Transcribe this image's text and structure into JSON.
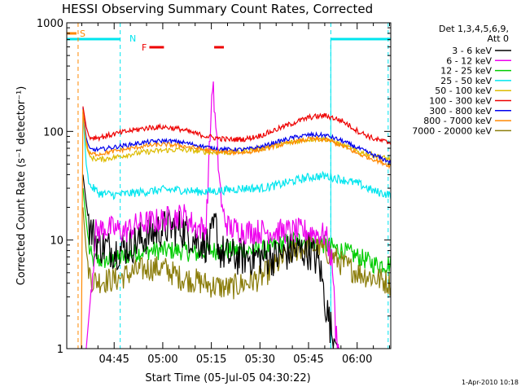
{
  "chart_data": {
    "type": "line",
    "title": "HESSI Observing Summary Count Rates, Corrected",
    "xlabel": "Start Time (05-Jul-05 04:30:22)",
    "ylabel": "Corrected Count Rate (s⁻¹ detector⁻¹)",
    "yscale": "log",
    "ylim": [
      1,
      1000
    ],
    "xlim_minutes": [
      0,
      100
    ],
    "x_ticks": [
      {
        "label": "04:45",
        "minute": 14.63
      },
      {
        "label": "05:00",
        "minute": 29.63
      },
      {
        "label": "05:15",
        "minute": 44.63
      },
      {
        "label": "05:30",
        "minute": 59.63
      },
      {
        "label": "05:45",
        "minute": 74.63
      },
      {
        "label": "06:00",
        "minute": 89.63
      }
    ],
    "y_ticks": [
      {
        "label": "1",
        "value": 1
      },
      {
        "label": "10",
        "value": 10
      },
      {
        "label": "100",
        "value": 100
      },
      {
        "label": "1000",
        "value": 1000
      }
    ],
    "legend_header": [
      "Det 1,3,4,5,6,9,",
      "Att 0"
    ],
    "legend_position": "right",
    "series": [
      {
        "name": "3 - 6 keV",
        "color": "#000000",
        "points": [
          [
            5,
            40
          ],
          [
            6,
            22
          ],
          [
            7,
            13
          ],
          [
            10,
            9
          ],
          [
            15,
            8
          ],
          [
            20,
            9
          ],
          [
            25,
            11
          ],
          [
            30,
            13
          ],
          [
            35,
            13
          ],
          [
            40,
            10
          ],
          [
            44,
            9
          ],
          [
            46,
            14
          ],
          [
            47,
            8
          ],
          [
            50,
            7
          ],
          [
            55,
            7
          ],
          [
            60,
            7
          ],
          [
            65,
            7
          ],
          [
            70,
            8
          ],
          [
            75,
            8
          ],
          [
            78,
            6
          ],
          [
            80,
            2.5
          ],
          [
            82,
            1.3
          ],
          [
            84,
            1
          ]
        ]
      },
      {
        "name": "6 - 12 keV",
        "color": "#ee00ee",
        "points": [
          [
            6,
            1
          ],
          [
            6.5,
            1.5
          ],
          [
            9,
            12
          ],
          [
            12,
            13
          ],
          [
            18,
            12
          ],
          [
            22,
            14
          ],
          [
            28,
            15
          ],
          [
            32,
            16
          ],
          [
            36,
            17
          ],
          [
            40,
            13
          ],
          [
            43,
            13
          ],
          [
            45,
            300
          ],
          [
            46,
            100
          ],
          [
            48,
            18
          ],
          [
            50,
            13
          ],
          [
            55,
            12
          ],
          [
            60,
            12
          ],
          [
            65,
            12
          ],
          [
            70,
            12
          ],
          [
            75,
            12
          ],
          [
            80,
            11
          ],
          [
            82,
            6
          ],
          [
            83,
            1.5
          ],
          [
            84,
            1
          ]
        ]
      },
      {
        "name": "12 - 25 keV",
        "color": "#00cc00",
        "points": [
          [
            5,
            30
          ],
          [
            6,
            15
          ],
          [
            7,
            8
          ],
          [
            8,
            6.5
          ],
          [
            15,
            6.5
          ],
          [
            20,
            7.5
          ],
          [
            25,
            8
          ],
          [
            30,
            8
          ],
          [
            35,
            8
          ],
          [
            40,
            7.5
          ],
          [
            45,
            8
          ],
          [
            50,
            8
          ],
          [
            55,
            8
          ],
          [
            60,
            8
          ],
          [
            65,
            9
          ],
          [
            70,
            10
          ],
          [
            75,
            10
          ],
          [
            80,
            9
          ],
          [
            85,
            8
          ],
          [
            90,
            7
          ],
          [
            95,
            6
          ],
          [
            100,
            6
          ]
        ]
      },
      {
        "name": "25 - 50 keV",
        "color": "#00e5ee",
        "points": [
          [
            5,
            150
          ],
          [
            6,
            50
          ],
          [
            7,
            32
          ],
          [
            10,
            27
          ],
          [
            15,
            26
          ],
          [
            20,
            27
          ],
          [
            25,
            28
          ],
          [
            30,
            29
          ],
          [
            35,
            29
          ],
          [
            40,
            28
          ],
          [
            45,
            28
          ],
          [
            50,
            29
          ],
          [
            55,
            30
          ],
          [
            60,
            30
          ],
          [
            65,
            32
          ],
          [
            70,
            35
          ],
          [
            75,
            38
          ],
          [
            80,
            39
          ],
          [
            85,
            36
          ],
          [
            90,
            33
          ],
          [
            95,
            28
          ],
          [
            100,
            26
          ]
        ]
      },
      {
        "name": "50 - 100 keV",
        "color": "#ddbb00",
        "points": [
          [
            5,
            160
          ],
          [
            6,
            75
          ],
          [
            7,
            58
          ],
          [
            10,
            55
          ],
          [
            15,
            58
          ],
          [
            20,
            62
          ],
          [
            25,
            65
          ],
          [
            30,
            67
          ],
          [
            35,
            68
          ],
          [
            40,
            66
          ],
          [
            45,
            64
          ],
          [
            50,
            64
          ],
          [
            55,
            66
          ],
          [
            60,
            70
          ],
          [
            65,
            75
          ],
          [
            70,
            80
          ],
          [
            75,
            85
          ],
          [
            80,
            85
          ],
          [
            85,
            75
          ],
          [
            90,
            65
          ],
          [
            95,
            60
          ],
          [
            100,
            55
          ]
        ]
      },
      {
        "name": "100 - 300 keV",
        "color": "#ee0000",
        "points": [
          [
            5,
            170
          ],
          [
            6,
            110
          ],
          [
            7,
            88
          ],
          [
            10,
            88
          ],
          [
            15,
            95
          ],
          [
            20,
            102
          ],
          [
            25,
            108
          ],
          [
            30,
            110
          ],
          [
            35,
            105
          ],
          [
            40,
            95
          ],
          [
            45,
            88
          ],
          [
            50,
            84
          ],
          [
            55,
            85
          ],
          [
            60,
            92
          ],
          [
            65,
            105
          ],
          [
            70,
            120
          ],
          [
            75,
            135
          ],
          [
            80,
            140
          ],
          [
            85,
            125
          ],
          [
            90,
            100
          ],
          [
            95,
            85
          ],
          [
            100,
            78
          ]
        ]
      },
      {
        "name": "300 - 800 keV",
        "color": "#0000ee",
        "points": [
          [
            5,
            165
          ],
          [
            6,
            88
          ],
          [
            7,
            68
          ],
          [
            10,
            68
          ],
          [
            15,
            72
          ],
          [
            20,
            76
          ],
          [
            25,
            80
          ],
          [
            30,
            82
          ],
          [
            35,
            80
          ],
          [
            40,
            75
          ],
          [
            45,
            70
          ],
          [
            50,
            68
          ],
          [
            55,
            68
          ],
          [
            60,
            72
          ],
          [
            65,
            80
          ],
          [
            70,
            88
          ],
          [
            75,
            93
          ],
          [
            80,
            92
          ],
          [
            85,
            82
          ],
          [
            90,
            70
          ],
          [
            95,
            60
          ],
          [
            100,
            52
          ]
        ]
      },
      {
        "name": "800 - 7000 keV",
        "color": "#ff8800",
        "points": [
          [
            4.5,
            1
          ],
          [
            5,
            160
          ],
          [
            6,
            80
          ],
          [
            7,
            62
          ],
          [
            10,
            62
          ],
          [
            15,
            66
          ],
          [
            20,
            70
          ],
          [
            25,
            74
          ],
          [
            30,
            76
          ],
          [
            35,
            74
          ],
          [
            40,
            70
          ],
          [
            45,
            66
          ],
          [
            50,
            64
          ],
          [
            55,
            64
          ],
          [
            60,
            68
          ],
          [
            65,
            74
          ],
          [
            70,
            80
          ],
          [
            75,
            85
          ],
          [
            80,
            84
          ],
          [
            85,
            74
          ],
          [
            90,
            62
          ],
          [
            95,
            55
          ],
          [
            100,
            48
          ]
        ]
      },
      {
        "name": "7000 - 20000 keV",
        "color": "#8b7d0b",
        "points": [
          [
            5,
            20
          ],
          [
            6,
            8
          ],
          [
            7,
            5
          ],
          [
            8,
            4.2
          ],
          [
            15,
            4.3
          ],
          [
            20,
            5
          ],
          [
            25,
            5.5
          ],
          [
            30,
            5.5
          ],
          [
            35,
            4.5
          ],
          [
            40,
            4.2
          ],
          [
            45,
            3.8
          ],
          [
            50,
            3.6
          ],
          [
            55,
            4
          ],
          [
            60,
            4.5
          ],
          [
            65,
            6
          ],
          [
            70,
            8
          ],
          [
            75,
            9
          ],
          [
            80,
            8
          ],
          [
            85,
            6
          ],
          [
            90,
            5
          ],
          [
            95,
            4.5
          ],
          [
            100,
            4
          ]
        ]
      }
    ],
    "annotations": [
      {
        "label": "S",
        "color": "#ff8800",
        "attenuator_dashed_line_minute": 3.5,
        "bar_minute_range": [
          0,
          3
        ]
      },
      {
        "label": "N",
        "color": "#00e5ee",
        "dashed_line_minutes": [
          16.5,
          81.5,
          99.2
        ],
        "night_bar_ranges": [
          [
            0,
            16.5
          ],
          [
            81.5,
            100
          ]
        ]
      },
      {
        "label": "F",
        "color": "#ee0000",
        "flare_bar_ranges": [
          [
            25.5,
            30
          ],
          [
            45.5,
            48.5
          ]
        ]
      }
    ],
    "timestamp": "1-Apr-2010 10:18"
  }
}
